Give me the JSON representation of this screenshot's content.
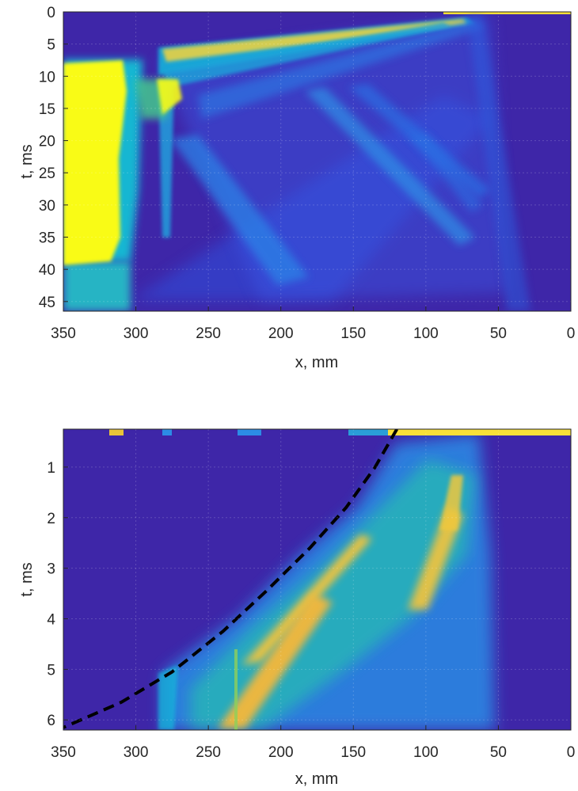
{
  "figure": {
    "background": "#ffffff",
    "colormap": "parula",
    "colors": {
      "background_field": "#3e26a8",
      "mid": "#12b1d9",
      "green": "#45c88e",
      "yellow": "#f9fb15",
      "orange": "#f5b83a",
      "dashed_curve": "#000000",
      "axis": "#262626"
    }
  },
  "chart_data": [
    {
      "type": "heatmap",
      "title": "",
      "xlabel": "x, mm",
      "ylabel": "t, ms",
      "xlim": [
        350,
        0
      ],
      "ylim": [
        0,
        46.5
      ],
      "x_reversed": true,
      "y_reversed": true,
      "grid": true,
      "xticks": [
        350,
        300,
        250,
        200,
        150,
        100,
        50,
        0
      ],
      "xtick_labels": [
        "350",
        "300",
        "250",
        "200",
        "150",
        "100",
        "50",
        "0"
      ],
      "yticks": [
        0,
        5,
        10,
        15,
        20,
        25,
        30,
        35,
        40,
        45
      ],
      "ytick_labels": [
        "0",
        "5",
        "10",
        "15",
        "20",
        "25",
        "30",
        "35",
        "40",
        "45"
      ],
      "features": [
        {
          "kind": "saturated-region",
          "x_range": [
            350,
            310
          ],
          "t_range": [
            8,
            40
          ],
          "level": "max"
        },
        {
          "kind": "high-region",
          "x_range": [
            350,
            300
          ],
          "t_range": [
            40,
            46.5
          ],
          "level": "mid"
        },
        {
          "kind": "front",
          "from": [
            285,
            6.5
          ],
          "to": [
            75,
            1.5
          ],
          "level": "high"
        },
        {
          "kind": "front",
          "from": [
            280,
            11
          ],
          "to": [
            65,
            1
          ],
          "level": "mid"
        },
        {
          "kind": "stripe",
          "from": [
            280,
            12
          ],
          "to": [
            270,
            36
          ],
          "level": "mid"
        },
        {
          "kind": "stripe",
          "from": [
            230,
            20
          ],
          "to": [
            150,
            40
          ],
          "level": "mid-low"
        },
        {
          "kind": "stripe",
          "from": [
            160,
            12
          ],
          "to": [
            65,
            36
          ],
          "level": "mid-low"
        },
        {
          "kind": "stripe",
          "from": [
            130,
            10
          ],
          "to": [
            60,
            27
          ],
          "level": "low"
        },
        {
          "kind": "boundary",
          "from": [
            60,
            1
          ],
          "to": [
            35,
            46
          ],
          "level": "low"
        }
      ]
    },
    {
      "type": "heatmap",
      "title": "",
      "xlabel": "x, mm",
      "ylabel": "t, ms",
      "xlim": [
        350,
        0
      ],
      "ylim": [
        0.25,
        6.2
      ],
      "x_reversed": true,
      "y_reversed": true,
      "grid": true,
      "xticks": [
        350,
        300,
        250,
        200,
        150,
        100,
        50,
        0
      ],
      "xtick_labels": [
        "350",
        "300",
        "250",
        "200",
        "150",
        "100",
        "50",
        "0"
      ],
      "yticks": [
        1,
        2,
        3,
        4,
        5,
        6
      ],
      "ytick_labels": [
        "1",
        "2",
        "3",
        "4",
        "5",
        "6"
      ],
      "features": [
        {
          "kind": "top-band",
          "x_range": [
            120,
            0
          ],
          "t_range": [
            0.25,
            0.32
          ],
          "level": "max"
        },
        {
          "kind": "stripe",
          "from": [
            210,
            5.7
          ],
          "to": [
            125,
            2.5
          ],
          "level": "high"
        },
        {
          "kind": "stripe",
          "from": [
            250,
            6.2
          ],
          "to": [
            140,
            3.2
          ],
          "level": "high"
        },
        {
          "kind": "stripe",
          "from": [
            125,
            4.6
          ],
          "to": [
            80,
            1.7
          ],
          "level": "high"
        },
        {
          "kind": "wave-body",
          "x_range": [
            285,
            55
          ],
          "t_range": [
            0.3,
            6.2
          ],
          "level": "mid"
        }
      ],
      "dashed_curve": {
        "style": "dashed",
        "color": "#000000",
        "points": [
          [
            120,
            0.25
          ],
          [
            135,
            1.0
          ],
          [
            155,
            1.8
          ],
          [
            180,
            2.6
          ],
          [
            210,
            3.45
          ],
          [
            240,
            4.25
          ],
          [
            275,
            5.05
          ],
          [
            310,
            5.65
          ],
          [
            350,
            6.15
          ]
        ]
      }
    }
  ]
}
